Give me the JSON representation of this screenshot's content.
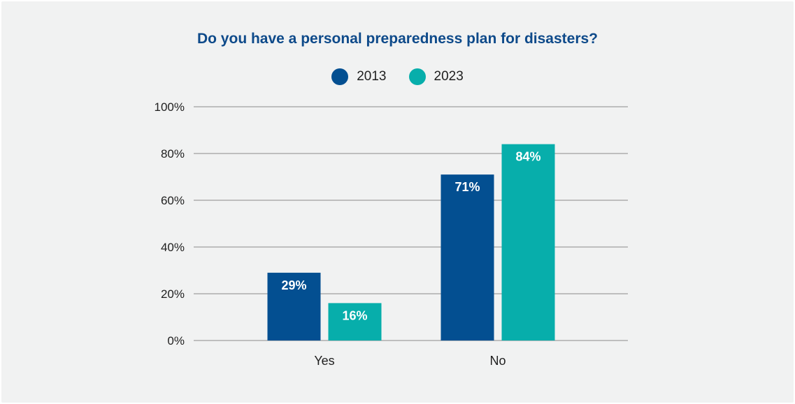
{
  "chart_data": {
    "type": "bar",
    "title": "Do you have a personal preparedness plan for disasters?",
    "categories": [
      "Yes",
      "No"
    ],
    "series": [
      {
        "name": "2013",
        "color": "#034f91",
        "values": [
          29,
          71
        ],
        "labels": [
          "29%",
          "71%"
        ]
      },
      {
        "name": "2023",
        "color": "#07aeab",
        "values": [
          16,
          84
        ],
        "labels": [
          "16%",
          "84%"
        ]
      }
    ],
    "ylim": [
      0,
      100
    ],
    "yticks": [
      0,
      20,
      40,
      60,
      80,
      100
    ],
    "ytick_labels": [
      "0%",
      "20%",
      "40%",
      "60%",
      "80%",
      "100%"
    ],
    "grid": true,
    "legend_position": "top-center",
    "title_color": "#0e4a8a",
    "grid_color": "#8a8a8a"
  }
}
